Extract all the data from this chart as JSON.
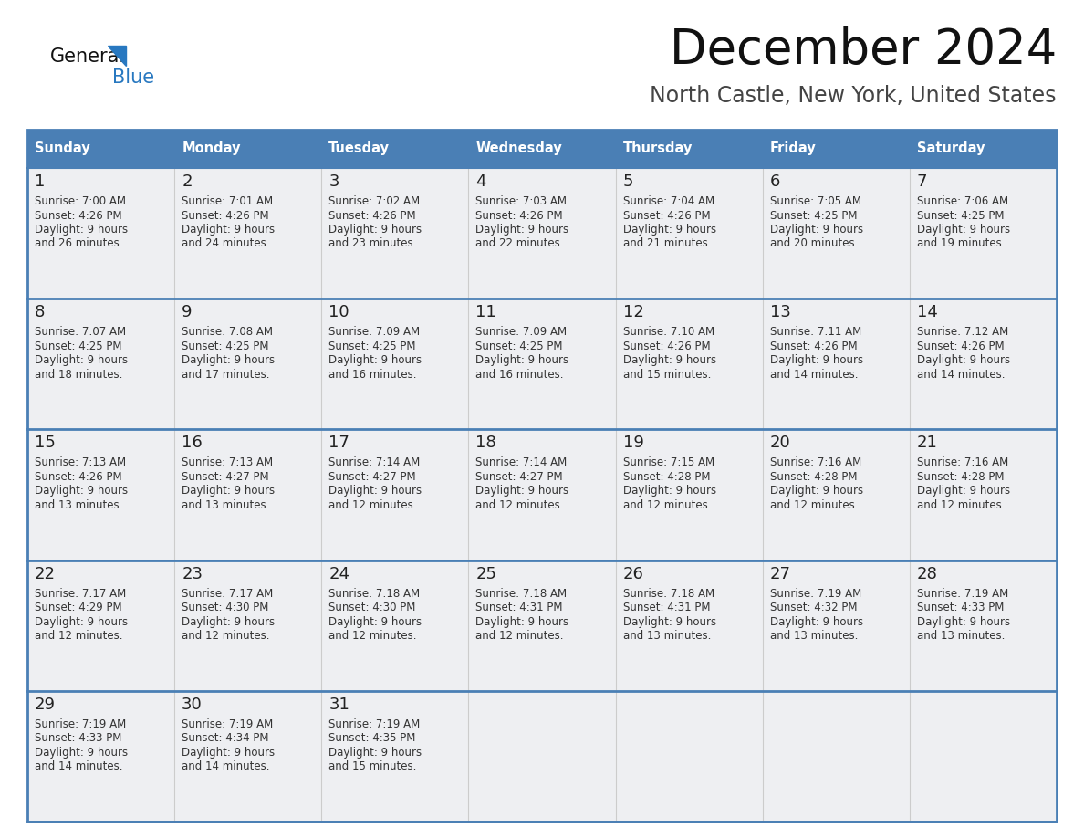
{
  "title": "December 2024",
  "subtitle": "North Castle, New York, United States",
  "days_of_week": [
    "Sunday",
    "Monday",
    "Tuesday",
    "Wednesday",
    "Thursday",
    "Friday",
    "Saturday"
  ],
  "header_bg": "#4A7FB5",
  "header_text": "#FFFFFF",
  "cell_bg": "#EEEFF2",
  "border_color_thick": "#4A7FB5",
  "border_color_thin": "#CCCCCC",
  "day_num_color": "#222222",
  "cell_text_color": "#333333",
  "title_color": "#111111",
  "subtitle_color": "#444444",
  "logo_general_color": "#111111",
  "logo_blue_color": "#2878C0",
  "weeks": [
    [
      {
        "day": 1,
        "sunrise": "7:00 AM",
        "sunset": "4:26 PM",
        "daylight_line1": "Daylight: 9 hours",
        "daylight_line2": "and 26 minutes."
      },
      {
        "day": 2,
        "sunrise": "7:01 AM",
        "sunset": "4:26 PM",
        "daylight_line1": "Daylight: 9 hours",
        "daylight_line2": "and 24 minutes."
      },
      {
        "day": 3,
        "sunrise": "7:02 AM",
        "sunset": "4:26 PM",
        "daylight_line1": "Daylight: 9 hours",
        "daylight_line2": "and 23 minutes."
      },
      {
        "day": 4,
        "sunrise": "7:03 AM",
        "sunset": "4:26 PM",
        "daylight_line1": "Daylight: 9 hours",
        "daylight_line2": "and 22 minutes."
      },
      {
        "day": 5,
        "sunrise": "7:04 AM",
        "sunset": "4:26 PM",
        "daylight_line1": "Daylight: 9 hours",
        "daylight_line2": "and 21 minutes."
      },
      {
        "day": 6,
        "sunrise": "7:05 AM",
        "sunset": "4:25 PM",
        "daylight_line1": "Daylight: 9 hours",
        "daylight_line2": "and 20 minutes."
      },
      {
        "day": 7,
        "sunrise": "7:06 AM",
        "sunset": "4:25 PM",
        "daylight_line1": "Daylight: 9 hours",
        "daylight_line2": "and 19 minutes."
      }
    ],
    [
      {
        "day": 8,
        "sunrise": "7:07 AM",
        "sunset": "4:25 PM",
        "daylight_line1": "Daylight: 9 hours",
        "daylight_line2": "and 18 minutes."
      },
      {
        "day": 9,
        "sunrise": "7:08 AM",
        "sunset": "4:25 PM",
        "daylight_line1": "Daylight: 9 hours",
        "daylight_line2": "and 17 minutes."
      },
      {
        "day": 10,
        "sunrise": "7:09 AM",
        "sunset": "4:25 PM",
        "daylight_line1": "Daylight: 9 hours",
        "daylight_line2": "and 16 minutes."
      },
      {
        "day": 11,
        "sunrise": "7:09 AM",
        "sunset": "4:25 PM",
        "daylight_line1": "Daylight: 9 hours",
        "daylight_line2": "and 16 minutes."
      },
      {
        "day": 12,
        "sunrise": "7:10 AM",
        "sunset": "4:26 PM",
        "daylight_line1": "Daylight: 9 hours",
        "daylight_line2": "and 15 minutes."
      },
      {
        "day": 13,
        "sunrise": "7:11 AM",
        "sunset": "4:26 PM",
        "daylight_line1": "Daylight: 9 hours",
        "daylight_line2": "and 14 minutes."
      },
      {
        "day": 14,
        "sunrise": "7:12 AM",
        "sunset": "4:26 PM",
        "daylight_line1": "Daylight: 9 hours",
        "daylight_line2": "and 14 minutes."
      }
    ],
    [
      {
        "day": 15,
        "sunrise": "7:13 AM",
        "sunset": "4:26 PM",
        "daylight_line1": "Daylight: 9 hours",
        "daylight_line2": "and 13 minutes."
      },
      {
        "day": 16,
        "sunrise": "7:13 AM",
        "sunset": "4:27 PM",
        "daylight_line1": "Daylight: 9 hours",
        "daylight_line2": "and 13 minutes."
      },
      {
        "day": 17,
        "sunrise": "7:14 AM",
        "sunset": "4:27 PM",
        "daylight_line1": "Daylight: 9 hours",
        "daylight_line2": "and 12 minutes."
      },
      {
        "day": 18,
        "sunrise": "7:14 AM",
        "sunset": "4:27 PM",
        "daylight_line1": "Daylight: 9 hours",
        "daylight_line2": "and 12 minutes."
      },
      {
        "day": 19,
        "sunrise": "7:15 AM",
        "sunset": "4:28 PM",
        "daylight_line1": "Daylight: 9 hours",
        "daylight_line2": "and 12 minutes."
      },
      {
        "day": 20,
        "sunrise": "7:16 AM",
        "sunset": "4:28 PM",
        "daylight_line1": "Daylight: 9 hours",
        "daylight_line2": "and 12 minutes."
      },
      {
        "day": 21,
        "sunrise": "7:16 AM",
        "sunset": "4:28 PM",
        "daylight_line1": "Daylight: 9 hours",
        "daylight_line2": "and 12 minutes."
      }
    ],
    [
      {
        "day": 22,
        "sunrise": "7:17 AM",
        "sunset": "4:29 PM",
        "daylight_line1": "Daylight: 9 hours",
        "daylight_line2": "and 12 minutes."
      },
      {
        "day": 23,
        "sunrise": "7:17 AM",
        "sunset": "4:30 PM",
        "daylight_line1": "Daylight: 9 hours",
        "daylight_line2": "and 12 minutes."
      },
      {
        "day": 24,
        "sunrise": "7:18 AM",
        "sunset": "4:30 PM",
        "daylight_line1": "Daylight: 9 hours",
        "daylight_line2": "and 12 minutes."
      },
      {
        "day": 25,
        "sunrise": "7:18 AM",
        "sunset": "4:31 PM",
        "daylight_line1": "Daylight: 9 hours",
        "daylight_line2": "and 12 minutes."
      },
      {
        "day": 26,
        "sunrise": "7:18 AM",
        "sunset": "4:31 PM",
        "daylight_line1": "Daylight: 9 hours",
        "daylight_line2": "and 13 minutes."
      },
      {
        "day": 27,
        "sunrise": "7:19 AM",
        "sunset": "4:32 PM",
        "daylight_line1": "Daylight: 9 hours",
        "daylight_line2": "and 13 minutes."
      },
      {
        "day": 28,
        "sunrise": "7:19 AM",
        "sunset": "4:33 PM",
        "daylight_line1": "Daylight: 9 hours",
        "daylight_line2": "and 13 minutes."
      }
    ],
    [
      {
        "day": 29,
        "sunrise": "7:19 AM",
        "sunset": "4:33 PM",
        "daylight_line1": "Daylight: 9 hours",
        "daylight_line2": "and 14 minutes."
      },
      {
        "day": 30,
        "sunrise": "7:19 AM",
        "sunset": "4:34 PM",
        "daylight_line1": "Daylight: 9 hours",
        "daylight_line2": "and 14 minutes."
      },
      {
        "day": 31,
        "sunrise": "7:19 AM",
        "sunset": "4:35 PM",
        "daylight_line1": "Daylight: 9 hours",
        "daylight_line2": "and 15 minutes."
      },
      null,
      null,
      null,
      null
    ]
  ],
  "figsize": [
    11.88,
    9.18
  ],
  "dpi": 100
}
